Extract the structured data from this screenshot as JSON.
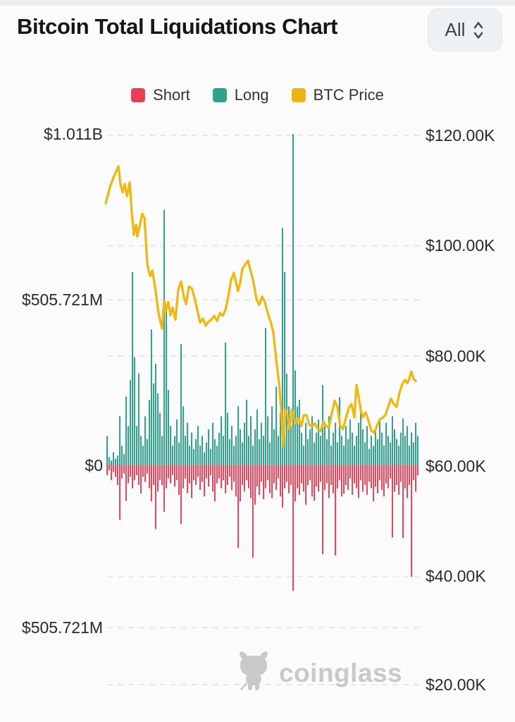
{
  "header": {
    "title": "Bitcoin Total Liquidations Chart",
    "range_selector": {
      "value": "All"
    }
  },
  "legend": {
    "items": [
      {
        "label": "Short",
        "color": "#e73f55"
      },
      {
        "label": "Long",
        "color": "#2ea38b"
      },
      {
        "label": "BTC Price",
        "color": "#eab512"
      }
    ]
  },
  "y_axis_left": {
    "labels": [
      "$1.011B",
      "$505.721M",
      "$0",
      "$505.721M"
    ]
  },
  "y_axis_right": {
    "labels": [
      "$120.00K",
      "$100.00K",
      "$80.00K",
      "$60.00K",
      "$40.00K",
      "$20.00K"
    ]
  },
  "watermark": {
    "brand": "coinglass"
  },
  "colors": {
    "short": "#e7455b",
    "long": "#2fa38c",
    "price": "#ebba16",
    "grid": "#e8e8e8",
    "watermark": "#c9c9c9"
  },
  "chart_data": {
    "type": "combo-bar-line",
    "title": "Bitcoin Total Liquidations Chart",
    "axes": {
      "left": {
        "unit": "liquidation_usd",
        "ticks": [
          "$1.011B",
          "$505.721M",
          "$0",
          "$505.721M"
        ],
        "max_abs_millions": 1011
      },
      "right": {
        "unit": "btc_price_usd",
        "ticks": [
          "$120.00K",
          "$100.00K",
          "$80.00K",
          "$60.00K",
          "$40.00K",
          "$20.00K"
        ],
        "range_k": [
          20,
          120
        ]
      }
    },
    "legend_position": "top",
    "grid": "dashed-horizontal",
    "series": [
      {
        "name": "Long",
        "type": "bar",
        "direction": "up",
        "unit": "million_usd",
        "values": [
          90,
          25,
          15,
          40,
          20,
          30,
          150,
          60,
          35,
          210,
          120,
          260,
          590,
          330,
          120,
          280,
          90,
          60,
          150,
          80,
          200,
          415,
          250,
          310,
          220,
          160,
          90,
          780,
          480,
          230,
          120,
          60,
          90,
          140,
          70,
          370,
          180,
          90,
          130,
          60,
          100,
          50,
          80,
          120,
          60,
          90,
          40,
          70,
          110,
          50,
          130,
          80,
          60,
          100,
          150,
          90,
          375,
          160,
          80,
          120,
          60,
          90,
          180,
          110,
          70,
          130,
          200,
          90,
          150,
          60,
          110,
          170,
          80,
          130,
          90,
          420,
          150,
          70,
          180,
          110,
          240,
          90,
          160,
          725,
          590,
          280,
          180,
          120,
          1011,
          290,
          180,
          200,
          100,
          60,
          130,
          80,
          110,
          150,
          70,
          100,
          140,
          90,
          245,
          120,
          80,
          150,
          60,
          100,
          130,
          70,
          208,
          90,
          60,
          120,
          80,
          140,
          100,
          60,
          90,
          130,
          186,
          110,
          70,
          120,
          50,
          90,
          60,
          110,
          80,
          140,
          100,
          60,
          130,
          90,
          70,
          150,
          110,
          80,
          60,
          100,
          143,
          90,
          120,
          60,
          100,
          70,
          130,
          90
        ]
      },
      {
        "name": "Short",
        "type": "bar",
        "direction": "down",
        "unit": "million_usd",
        "values": [
          30,
          15,
          45,
          20,
          35,
          60,
          166,
          40,
          25,
          108,
          55,
          35,
          70,
          45,
          30,
          60,
          86,
          35,
          50,
          25,
          70,
          110,
          60,
          194,
          80,
          45,
          60,
          142,
          70,
          40,
          55,
          30,
          65,
          45,
          90,
          179,
          70,
          40,
          85,
          55,
          100,
          45,
          60,
          35,
          75,
          50,
          95,
          40,
          65,
          30,
          80,
          110,
          55,
          40,
          70,
          45,
          85,
          60,
          35,
          75,
          50,
          95,
          252,
          110,
          60,
          80,
          45,
          70,
          100,
          282,
          120,
          65,
          90,
          50,
          103,
          70,
          45,
          85,
          100,
          55,
          75,
          40,
          95,
          129,
          70,
          50,
          85,
          60,
          383,
          110,
          70,
          90,
          55,
          80,
          120,
          60,
          45,
          95,
          108,
          65,
          80,
          50,
          271,
          75,
          55,
          100,
          60,
          85,
          275,
          70,
          45,
          95,
          86,
          60,
          75,
          40,
          90,
          55,
          70,
          100,
          45,
          80,
          60,
          90,
          50,
          70,
          110,
          65,
          85,
          45,
          75,
          95,
          55,
          70,
          40,
          220,
          80,
          60,
          90,
          50,
          222,
          70,
          100,
          60,
          340,
          45,
          80,
          30
        ]
      },
      {
        "name": "BTC Price",
        "type": "line",
        "unit": "thousand_usd",
        "points": [
          [
            0.0,
            107.5
          ],
          [
            0.014,
            110.5
          ],
          [
            0.027,
            112.5
          ],
          [
            0.041,
            114.2
          ],
          [
            0.047,
            111.0
          ],
          [
            0.054,
            109.5
          ],
          [
            0.061,
            111.0
          ],
          [
            0.068,
            108.8
          ],
          [
            0.077,
            111.3
          ],
          [
            0.083,
            106.0
          ],
          [
            0.09,
            101.8
          ],
          [
            0.097,
            103.6
          ],
          [
            0.101,
            101.5
          ],
          [
            0.108,
            103.2
          ],
          [
            0.117,
            105.6
          ],
          [
            0.124,
            104.8
          ],
          [
            0.133,
            96.5
          ],
          [
            0.142,
            94.3
          ],
          [
            0.149,
            95.3
          ],
          [
            0.158,
            92.2
          ],
          [
            0.169,
            87.6
          ],
          [
            0.18,
            84.8
          ],
          [
            0.187,
            89.8
          ],
          [
            0.194,
            88.2
          ],
          [
            0.2,
            89.6
          ],
          [
            0.207,
            87.2
          ],
          [
            0.214,
            88.6
          ],
          [
            0.223,
            86.4
          ],
          [
            0.232,
            91.8
          ],
          [
            0.241,
            93.3
          ],
          [
            0.25,
            90.6
          ],
          [
            0.257,
            89.2
          ],
          [
            0.266,
            92.4
          ],
          [
            0.275,
            92.1
          ],
          [
            0.284,
            90.4
          ],
          [
            0.293,
            88.1
          ],
          [
            0.302,
            85.9
          ],
          [
            0.311,
            86.6
          ],
          [
            0.32,
            85.3
          ],
          [
            0.329,
            86.1
          ],
          [
            0.338,
            86.4
          ],
          [
            0.347,
            87.1
          ],
          [
            0.356,
            86.2
          ],
          [
            0.365,
            87.6
          ],
          [
            0.374,
            87.1
          ],
          [
            0.383,
            88.2
          ],
          [
            0.392,
            90.6
          ],
          [
            0.401,
            93.6
          ],
          [
            0.41,
            94.9
          ],
          [
            0.417,
            93.1
          ],
          [
            0.423,
            91.6
          ],
          [
            0.43,
            93.1
          ],
          [
            0.437,
            95.6
          ],
          [
            0.446,
            96.4
          ],
          [
            0.455,
            97.1
          ],
          [
            0.464,
            95.1
          ],
          [
            0.473,
            93.1
          ],
          [
            0.482,
            90.1
          ],
          [
            0.491,
            89.1
          ],
          [
            0.5,
            90.6
          ],
          [
            0.509,
            89.6
          ],
          [
            0.518,
            87.6
          ],
          [
            0.527,
            86.1
          ],
          [
            0.536,
            84.1
          ],
          [
            0.545,
            79.1
          ],
          [
            0.554,
            75.1
          ],
          [
            0.561,
            70.1
          ],
          [
            0.568,
            63.4
          ],
          [
            0.574,
            70.1
          ],
          [
            0.581,
            69.1
          ],
          [
            0.588,
            66.6
          ],
          [
            0.595,
            70.1
          ],
          [
            0.601,
            68.6
          ],
          [
            0.608,
            67.6
          ],
          [
            0.617,
            68.6
          ],
          [
            0.626,
            67.1
          ],
          [
            0.633,
            69.1
          ],
          [
            0.642,
            69.1
          ],
          [
            0.651,
            67.3
          ],
          [
            0.66,
            67.1
          ],
          [
            0.669,
            67.6
          ],
          [
            0.678,
            66.6
          ],
          [
            0.687,
            66.2
          ],
          [
            0.696,
            67.9
          ],
          [
            0.705,
            67.1
          ],
          [
            0.714,
            66.9
          ],
          [
            0.723,
            69.5
          ],
          [
            0.732,
            71.7
          ],
          [
            0.741,
            70.6
          ],
          [
            0.75,
            67.1
          ],
          [
            0.759,
            66.6
          ],
          [
            0.768,
            68.6
          ],
          [
            0.777,
            70.4
          ],
          [
            0.786,
            71.1
          ],
          [
            0.795,
            68.7
          ],
          [
            0.802,
            74.6
          ],
          [
            0.808,
            72.6
          ],
          [
            0.815,
            70.1
          ],
          [
            0.822,
            68.7
          ],
          [
            0.831,
            69.6
          ],
          [
            0.84,
            68.1
          ],
          [
            0.849,
            66.3
          ],
          [
            0.858,
            65.9
          ],
          [
            0.867,
            67.1
          ],
          [
            0.876,
            68.3
          ],
          [
            0.885,
            68.6
          ],
          [
            0.894,
            69.1
          ],
          [
            0.903,
            70.6
          ],
          [
            0.912,
            72.1
          ],
          [
            0.921,
            71.1
          ],
          [
            0.93,
            70.6
          ],
          [
            0.939,
            73.1
          ],
          [
            0.948,
            74.7
          ],
          [
            0.957,
            75.5
          ],
          [
            0.964,
            74.9
          ],
          [
            0.97,
            75.6
          ],
          [
            0.977,
            77.0
          ],
          [
            0.986,
            75.5
          ],
          [
            0.991,
            75.3
          ]
        ]
      }
    ]
  }
}
